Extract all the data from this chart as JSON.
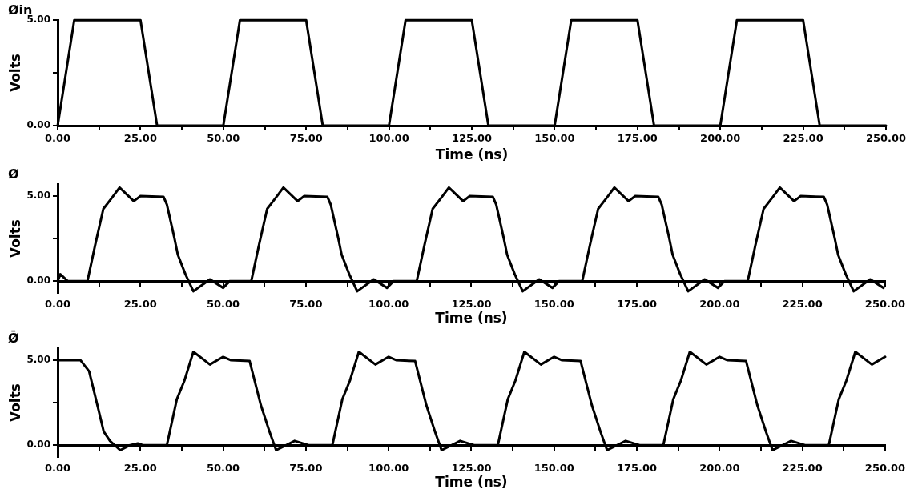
{
  "chart_data": [
    {
      "type": "line",
      "title": "Øin",
      "xlabel": "Time (ns)",
      "ylabel": "Volts",
      "marker": "none",
      "line_style": "solid",
      "grid": false,
      "legend": false,
      "x": [
        0,
        5,
        25,
        30,
        50,
        55,
        75,
        80,
        100,
        105,
        125,
        130,
        150,
        155,
        175,
        180,
        200,
        205,
        225,
        230,
        250
      ],
      "series": [
        {
          "color": "#000000",
          "values": [
            0,
            5,
            5,
            0,
            0,
            5,
            5,
            0,
            0,
            5,
            5,
            0,
            0,
            5,
            5,
            0,
            0,
            5,
            5,
            0,
            0
          ]
        }
      ],
      "xlim": [
        0,
        250
      ],
      "xticks": [
        {
          "value": 0,
          "label": "0.00"
        },
        {
          "value": 12.5,
          "label": null
        },
        {
          "value": 25,
          "label": "25.00"
        },
        {
          "value": 37.5,
          "label": null
        },
        {
          "value": 50,
          "label": "50.00"
        },
        {
          "value": 62.5,
          "label": null
        },
        {
          "value": 75,
          "label": "75.00"
        },
        {
          "value": 87.5,
          "label": null
        },
        {
          "value": 100,
          "label": "100.00"
        },
        {
          "value": 112.5,
          "label": null
        },
        {
          "value": 125,
          "label": "125.00"
        },
        {
          "value": 137.5,
          "label": null
        },
        {
          "value": 150,
          "label": "150.00"
        },
        {
          "value": 162.5,
          "label": null
        },
        {
          "value": 175,
          "label": "175.00"
        },
        {
          "value": 187.5,
          "label": null
        },
        {
          "value": 200,
          "label": "200.00"
        },
        {
          "value": 212.5,
          "label": null
        },
        {
          "value": 225,
          "label": "225.00"
        },
        {
          "value": 237.5,
          "label": null
        },
        {
          "value": 250,
          "label": "250.00"
        }
      ],
      "ylim": [
        0,
        5
      ],
      "yticks": [
        {
          "value": 0,
          "label": "0.00"
        },
        {
          "value": 2.5,
          "label": null
        },
        {
          "value": 5,
          "label": "5.00"
        }
      ]
    },
    {
      "type": "line",
      "title": "Ø",
      "xlabel": "Time (ns)",
      "ylabel": "Volts",
      "marker": "none",
      "line_style": "solid",
      "grid": false,
      "legend": false,
      "x": [
        0,
        0.8,
        3,
        9,
        11.3,
        13.8,
        16.4,
        18.7,
        23,
        25,
        32,
        33,
        35.3,
        36.3,
        38.6,
        41,
        46,
        50,
        52,
        58.5,
        60.8,
        63.3,
        65.9,
        68.2,
        72.5,
        74.5,
        81.5,
        82.5,
        84.8,
        85.8,
        88.1,
        90.5,
        95.5,
        99.5,
        101.5,
        108.5,
        110.8,
        113.3,
        115.9,
        118.2,
        122.5,
        124.5,
        131.5,
        132.5,
        134.8,
        135.8,
        138.1,
        140.5,
        145.5,
        149.5,
        151.5,
        158.5,
        160.8,
        163.3,
        165.9,
        168.2,
        172.5,
        174.5,
        181.5,
        182.5,
        184.8,
        185.8,
        188.1,
        190.5,
        195.5,
        199.5,
        201.5,
        208.5,
        210.8,
        213.3,
        215.9,
        218.2,
        222.5,
        224.5,
        231.5,
        232.5,
        234.8,
        235.8,
        238.1,
        240.5,
        245.5,
        249.5
      ],
      "series": [
        {
          "color": "#000000",
          "values": [
            0,
            0.4,
            0,
            0,
            2.1,
            4.25,
            4.9,
            5.5,
            4.7,
            5.0,
            4.95,
            4.5,
            2.5,
            1.55,
            0.4,
            -0.6,
            0.1,
            -0.4,
            0,
            0,
            2.1,
            4.25,
            4.9,
            5.5,
            4.7,
            5.0,
            4.95,
            4.5,
            2.5,
            1.55,
            0.4,
            -0.6,
            0.1,
            -0.4,
            0,
            0,
            2.1,
            4.25,
            4.9,
            5.5,
            4.7,
            5.0,
            4.95,
            4.5,
            2.5,
            1.55,
            0.4,
            -0.6,
            0.1,
            -0.4,
            0,
            0,
            2.1,
            4.25,
            4.9,
            5.5,
            4.7,
            5.0,
            4.95,
            4.5,
            2.5,
            1.55,
            0.4,
            -0.6,
            0.1,
            -0.4,
            0,
            0,
            2.1,
            4.25,
            4.9,
            5.5,
            4.7,
            5.0,
            4.95,
            4.5,
            2.5,
            1.55,
            0.4,
            -0.6,
            0.1,
            -0.4
          ]
        }
      ],
      "xlim": [
        0,
        250
      ],
      "xticks": [
        {
          "value": 0,
          "label": "0.00"
        },
        {
          "value": 12.5,
          "label": null
        },
        {
          "value": 25,
          "label": "25.00"
        },
        {
          "value": 37.5,
          "label": null
        },
        {
          "value": 50,
          "label": "50.00"
        },
        {
          "value": 62.5,
          "label": null
        },
        {
          "value": 75,
          "label": "75.00"
        },
        {
          "value": 87.5,
          "label": null
        },
        {
          "value": 100,
          "label": "100.00"
        },
        {
          "value": 112.5,
          "label": null
        },
        {
          "value": 125,
          "label": "125.00"
        },
        {
          "value": 137.5,
          "label": null
        },
        {
          "value": 150,
          "label": "150.00"
        },
        {
          "value": 162.5,
          "label": null
        },
        {
          "value": 175,
          "label": "175.00"
        },
        {
          "value": 187.5,
          "label": null
        },
        {
          "value": 200,
          "label": "200.00"
        },
        {
          "value": 212.5,
          "label": null
        },
        {
          "value": 225,
          "label": "225.00"
        },
        {
          "value": 237.5,
          "label": null
        },
        {
          "value": 250,
          "label": "250.00"
        }
      ],
      "ylim": [
        -0.7,
        5.7
      ],
      "yticks": [
        {
          "value": 0,
          "label": "0.00"
        },
        {
          "value": 2.5,
          "label": null
        },
        {
          "value": 5,
          "label": "5.00"
        }
      ]
    },
    {
      "type": "line",
      "title": "Ø̄",
      "xlabel": "Time (ns)",
      "ylabel": "Volts",
      "marker": "none",
      "line_style": "solid",
      "grid": false,
      "legend": false,
      "x": [
        0,
        6.9,
        9.5,
        12,
        13.9,
        15.8,
        18.9,
        21.9,
        24.2,
        25.7,
        33,
        36,
        38.3,
        41,
        46,
        50,
        52.4,
        58,
        61.4,
        64,
        66,
        71.6,
        75.8,
        83,
        86,
        88.3,
        91,
        96,
        100,
        102.4,
        108,
        111.4,
        114,
        116,
        121.6,
        125.8,
        133,
        136,
        138.3,
        141,
        146,
        150,
        152.4,
        158,
        161.4,
        164,
        166,
        171.6,
        175.8,
        183,
        186,
        188.3,
        191,
        196,
        200,
        202.4,
        208,
        211.4,
        214,
        216,
        221.6,
        225.8,
        233,
        236,
        238.3,
        241,
        246,
        250
      ],
      "series": [
        {
          "color": "#000000",
          "values": [
            5,
            5,
            4.35,
            2.35,
            0.8,
            0.25,
            -0.3,
            0,
            0.1,
            0,
            0,
            2.7,
            3.8,
            5.5,
            4.75,
            5.2,
            5.0,
            4.95,
            2.35,
            0.8,
            -0.3,
            0.25,
            0,
            0,
            2.7,
            3.8,
            5.5,
            4.75,
            5.2,
            5.0,
            4.95,
            2.35,
            0.8,
            -0.3,
            0.25,
            0,
            0,
            2.7,
            3.8,
            5.5,
            4.75,
            5.2,
            5.0,
            4.95,
            2.35,
            0.8,
            -0.3,
            0.25,
            0,
            0,
            2.7,
            3.8,
            5.5,
            4.75,
            5.2,
            5.0,
            4.95,
            2.35,
            0.8,
            -0.3,
            0.25,
            0,
            0,
            2.7,
            3.8,
            5.5,
            4.75,
            5.2
          ]
        }
      ],
      "xlim": [
        0,
        250
      ],
      "xticks": [
        {
          "value": 0,
          "label": "0.00"
        },
        {
          "value": 12.5,
          "label": null
        },
        {
          "value": 25,
          "label": "25.00"
        },
        {
          "value": 37.5,
          "label": null
        },
        {
          "value": 50,
          "label": "50.00"
        },
        {
          "value": 62.5,
          "label": null
        },
        {
          "value": 75,
          "label": "75.00"
        },
        {
          "value": 87.5,
          "label": null
        },
        {
          "value": 100,
          "label": "100.00"
        },
        {
          "value": 112.5,
          "label": null
        },
        {
          "value": 125,
          "label": "125.00"
        },
        {
          "value": 137.5,
          "label": null
        },
        {
          "value": 150,
          "label": "150.00"
        },
        {
          "value": 162.5,
          "label": null
        },
        {
          "value": 175,
          "label": "175.00"
        },
        {
          "value": 187.5,
          "label": null
        },
        {
          "value": 200,
          "label": "200.00"
        },
        {
          "value": 212.5,
          "label": null
        },
        {
          "value": 225,
          "label": "225.00"
        },
        {
          "value": 237.5,
          "label": null
        },
        {
          "value": 250,
          "label": "250.00"
        }
      ],
      "ylim": [
        -0.7,
        5.7
      ],
      "yticks": [
        {
          "value": 0,
          "label": "0.00"
        },
        {
          "value": 2.5,
          "label": null
        },
        {
          "value": 5,
          "label": "5.00"
        }
      ]
    }
  ]
}
